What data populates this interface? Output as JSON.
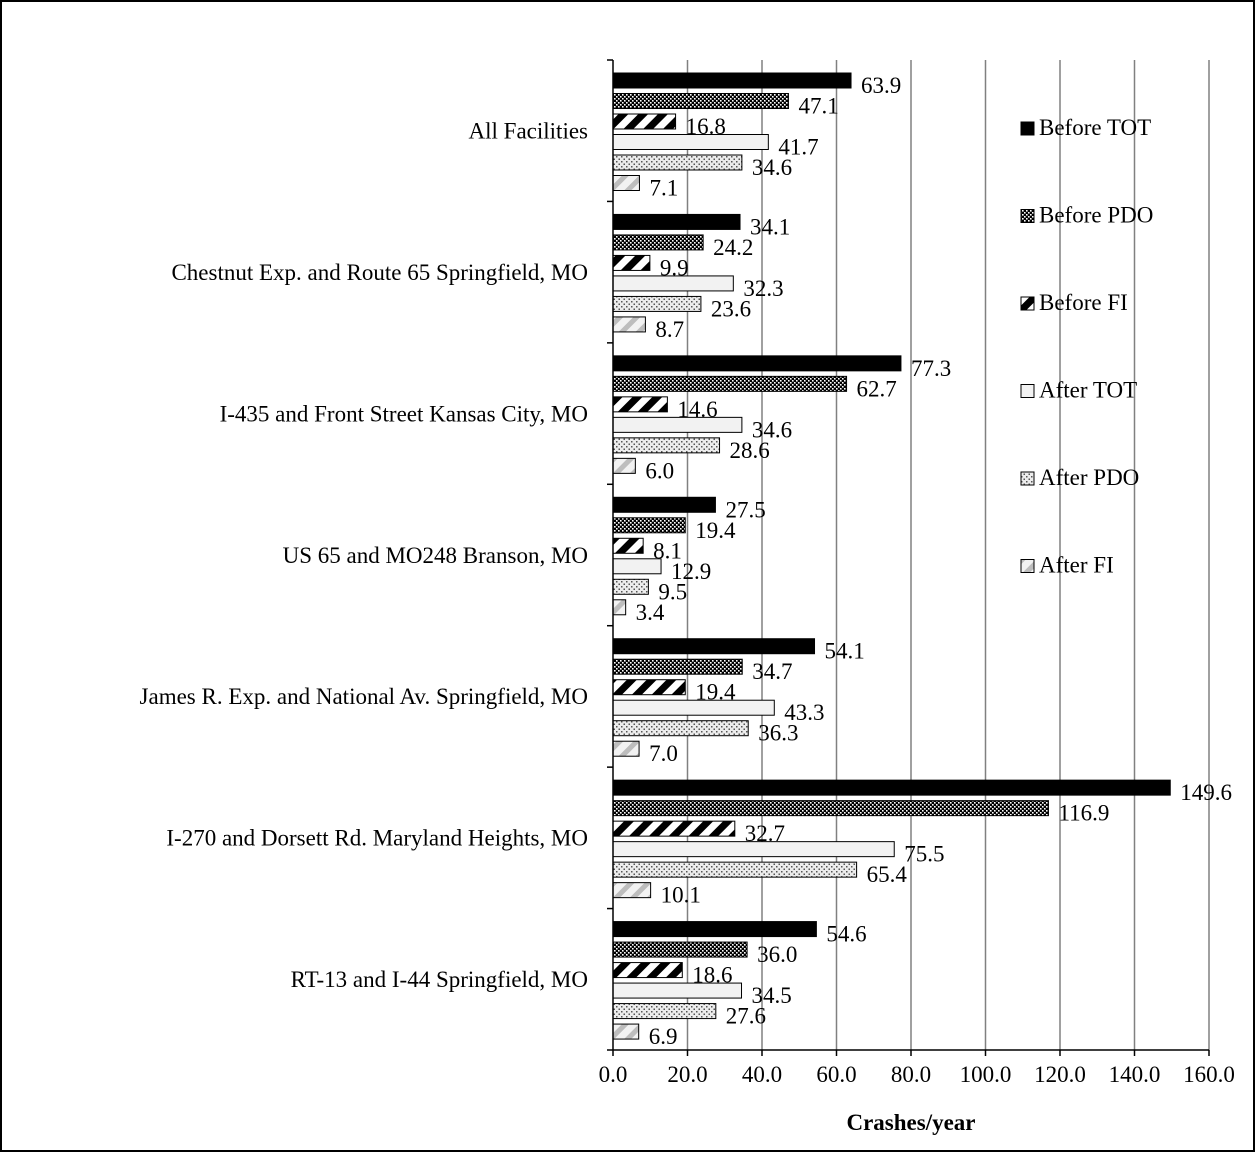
{
  "chart_data": {
    "type": "bar",
    "orientation": "horizontal",
    "categories": [
      "All Facilities",
      "Chestnut Exp. and Route 65 Springfield, MO",
      "I-435 and Front Street Kansas City, MO",
      "US 65 and MO248 Branson, MO",
      "James R. Exp. and National Av. Springfield, MO",
      "I-270 and Dorsett Rd. Maryland Heights, MO",
      "RT-13 and I-44 Springfield, MO"
    ],
    "series": [
      {
        "name": "Before TOT",
        "pattern": "solid",
        "values": [
          63.9,
          34.1,
          77.3,
          27.5,
          54.1,
          149.6,
          54.6
        ]
      },
      {
        "name": "Before PDO",
        "pattern": "dense-dots",
        "values": [
          47.1,
          24.2,
          62.7,
          19.4,
          34.7,
          116.9,
          36.0
        ]
      },
      {
        "name": "Before FI",
        "pattern": "wide-diagonal",
        "values": [
          16.8,
          9.9,
          14.6,
          8.1,
          19.4,
          32.7,
          18.6
        ]
      },
      {
        "name": "After TOT",
        "pattern": "light",
        "values": [
          41.7,
          32.3,
          34.6,
          12.9,
          43.3,
          75.5,
          34.5
        ]
      },
      {
        "name": "After PDO",
        "pattern": "sparse-dots",
        "values": [
          34.6,
          23.6,
          28.6,
          9.5,
          36.3,
          65.4,
          27.6
        ]
      },
      {
        "name": "After FI",
        "pattern": "light-diagonal",
        "values": [
          7.1,
          8.7,
          6.0,
          3.4,
          7.0,
          10.1,
          6.9
        ]
      }
    ],
    "xlabel": "Crashes/year",
    "ylabel": "",
    "xlim": [
      0,
      160
    ],
    "xticks": [
      "0.0",
      "20.0",
      "40.0",
      "60.0",
      "80.0",
      "100.0",
      "120.0",
      "140.0",
      "160.0"
    ],
    "grid": "vertical",
    "legend_position": "right",
    "colors": {
      "bar_dark": "#000000",
      "bar_light": "#f2f2f2",
      "grid": "#808080",
      "hatch_light": "#bfbfbf"
    }
  }
}
